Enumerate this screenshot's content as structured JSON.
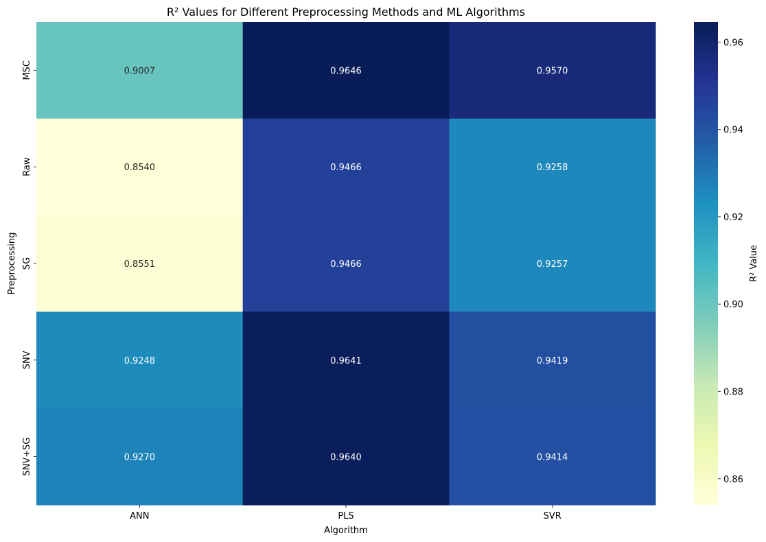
{
  "chart_data": {
    "type": "heatmap",
    "title": "R² Values for Different Preprocessing Methods and ML Algorithms",
    "xlabel": "Algorithm",
    "ylabel": "Preprocessing",
    "x_categories": [
      "ANN",
      "PLS",
      "SVR"
    ],
    "y_categories": [
      "MSC",
      "Raw",
      "SG",
      "SNV",
      "SNV+SG"
    ],
    "values": [
      [
        0.9007,
        0.9646,
        0.957
      ],
      [
        0.854,
        0.9466,
        0.9258
      ],
      [
        0.8551,
        0.9466,
        0.9257
      ],
      [
        0.9248,
        0.9641,
        0.9419
      ],
      [
        0.927,
        0.964,
        0.9414
      ]
    ],
    "value_format_decimals": 4,
    "colormap": "YlGnBu",
    "color_range": [
      0.854,
      0.9646
    ],
    "colorbar": {
      "label": "R² Value",
      "ticks": [
        0.86,
        0.88,
        0.9,
        0.92,
        0.94,
        0.96
      ],
      "tick_labels": [
        "0.86",
        "0.88",
        "0.90",
        "0.92",
        "0.94",
        "0.96"
      ],
      "placement": "right"
    },
    "grid": false
  }
}
